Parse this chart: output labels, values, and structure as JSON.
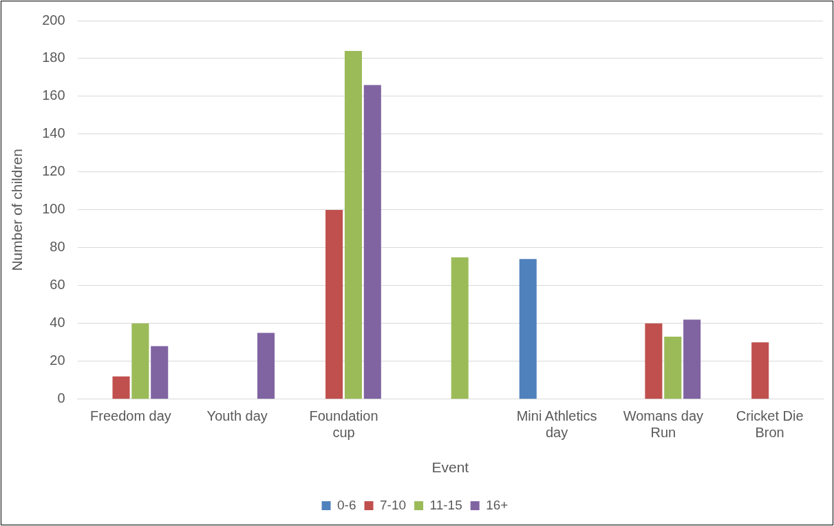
{
  "chart_data": {
    "type": "bar",
    "xlabel": "Event",
    "ylabel": "Number of children",
    "categories": [
      "Freedom day",
      "Youth day",
      "Foundation cup",
      null,
      "Mini Athletics day",
      "Womans day Run",
      "Cricket Die Bron"
    ],
    "series": [
      {
        "name": "0-6",
        "color": "#4f81bd",
        "values": [
          null,
          null,
          null,
          null,
          74,
          null,
          null
        ]
      },
      {
        "name": "7-10",
        "color": "#c0504d",
        "values": [
          12,
          null,
          100,
          null,
          null,
          40,
          30
        ]
      },
      {
        "name": "11-15",
        "color": "#9bbb59",
        "values": [
          40,
          null,
          184,
          75,
          null,
          33,
          null
        ]
      },
      {
        "name": "16+",
        "color": "#8064a2",
        "values": [
          28,
          35,
          166,
          null,
          null,
          42,
          null
        ]
      }
    ],
    "ylim": [
      0,
      200
    ],
    "yticks": [
      0,
      20,
      40,
      60,
      80,
      100,
      120,
      140,
      160,
      180,
      200
    ],
    "grid": "y",
    "legend": "bottom"
  }
}
